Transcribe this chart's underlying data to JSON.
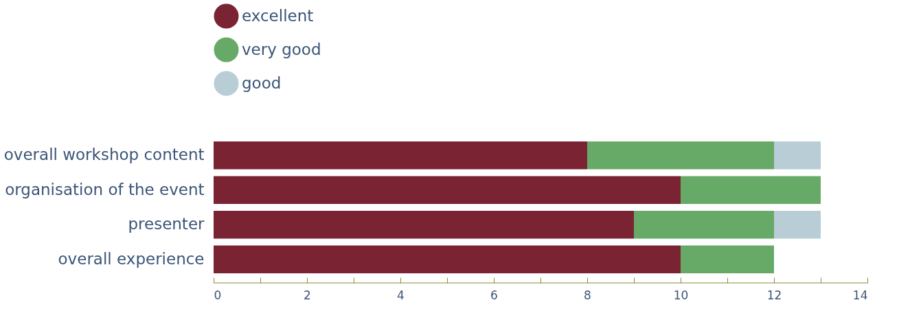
{
  "chart_data": {
    "type": "bar",
    "orientation": "horizontal",
    "stacked": true,
    "categories": [
      "overall workshop content",
      "organisation of the event",
      "presenter",
      "overall experience"
    ],
    "series": [
      {
        "name": "excellent",
        "color": "#7a2333",
        "values": [
          8,
          10,
          9,
          10
        ]
      },
      {
        "name": "very good",
        "color": "#67aa68",
        "values": [
          4,
          3,
          3,
          2
        ]
      },
      {
        "name": "good",
        "color": "#b8cdd6",
        "values": [
          1,
          0,
          1,
          0
        ]
      }
    ],
    "xlim": [
      0,
      14
    ],
    "xticks": [
      0,
      {
        "value": 1,
        "label": null
      },
      2,
      {
        "value": 3,
        "label": null
      },
      4,
      {
        "value": 5,
        "label": null
      },
      6,
      {
        "value": 7,
        "label": null
      },
      8,
      {
        "value": 9,
        "label": null
      },
      10,
      {
        "value": 11,
        "label": null
      },
      12,
      {
        "value": 13,
        "label": null
      },
      14
    ],
    "grid": false,
    "legend": "top left"
  }
}
